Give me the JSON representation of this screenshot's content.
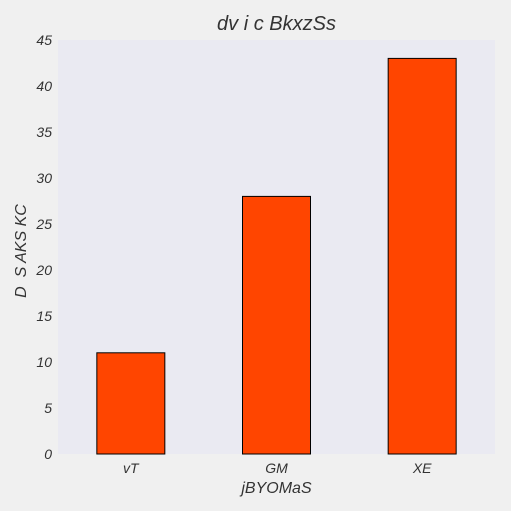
{
  "chart_data": {
    "type": "bar",
    "title": "dv i c BkxzSs",
    "xlabel": "jBYOMaS",
    "ylabel": "D  S AKS KC",
    "categories": [
      "vT",
      "GM",
      "XE"
    ],
    "values": [
      11,
      28,
      43
    ],
    "ylim": [
      0,
      45
    ],
    "yticks": [
      0,
      5,
      10,
      15,
      20,
      25,
      30,
      35,
      40,
      45
    ],
    "ytick_labels": [
      "0",
      "5",
      "10",
      "15",
      "20",
      "25",
      "30",
      "35",
      "40",
      "45"
    ],
    "grid": false,
    "legend": "none"
  },
  "colors": {
    "figure_background": "#f0f0f0",
    "plot_background": "#eaeaf2",
    "bar_fill": "#ff4500",
    "bar_edge": "#000000",
    "text": "#333333"
  }
}
